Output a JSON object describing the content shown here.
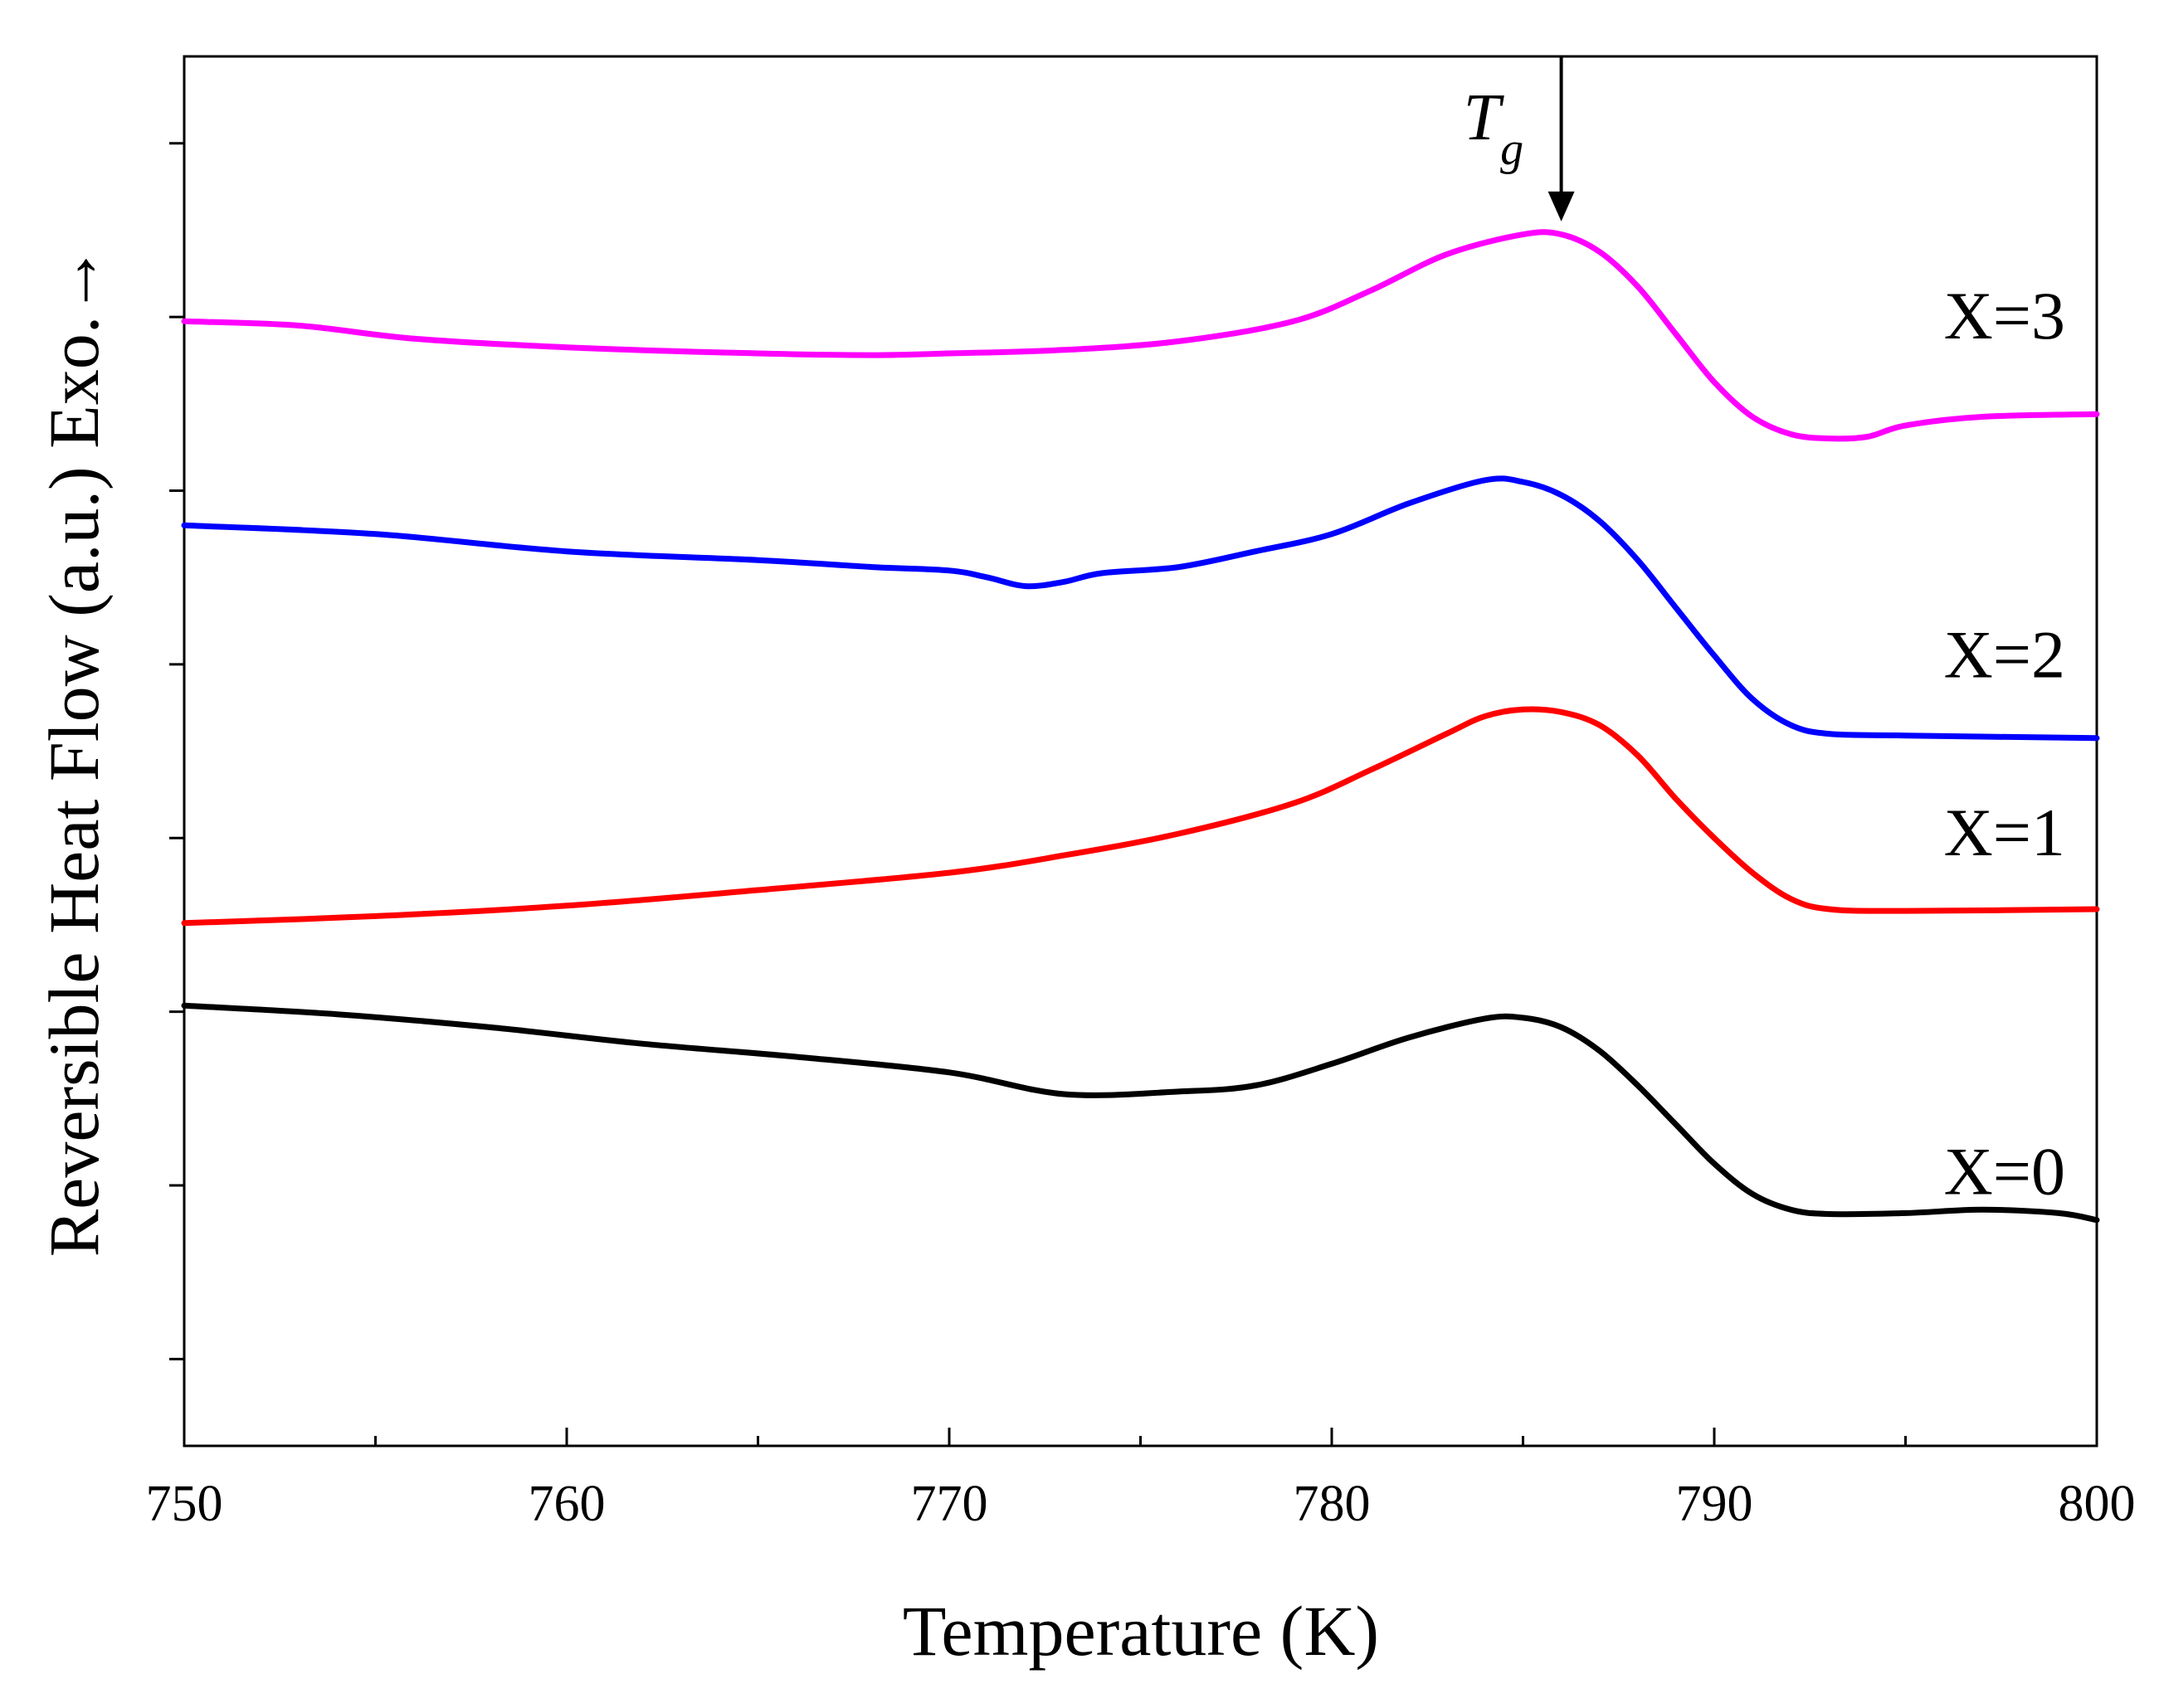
{
  "chart_data": {
    "type": "line",
    "title": "",
    "xlabel": "Temperature (K)",
    "ylabel": "Reversible Heat Flow (a.u.) Exo.→",
    "xlim": [
      750,
      800
    ],
    "ylim": [
      -1,
      15
    ],
    "x_ticks": [
      750,
      760,
      770,
      780,
      790,
      800
    ],
    "x_tick_labels": [
      "750",
      "760",
      "770",
      "780",
      "790",
      "800"
    ],
    "x_minor_ticks": [
      755,
      765,
      775,
      785,
      795
    ],
    "y_ticks": [
      0,
      2,
      4,
      6,
      8,
      10,
      12,
      14
    ],
    "y_tick_labels_visible": false,
    "annotation": {
      "main": "T",
      "sub": "g",
      "x": 786,
      "arrow_from_y": 15.0,
      "arrow_to_y": 13.1
    },
    "series": [
      {
        "name": "X=0",
        "label": "X=0",
        "color": "#000000",
        "label_pos": [
          796,
          1.9
        ],
        "points": [
          [
            750,
            4.07
          ],
          [
            754,
            3.97
          ],
          [
            758,
            3.82
          ],
          [
            762,
            3.63
          ],
          [
            766,
            3.48
          ],
          [
            770,
            3.3
          ],
          [
            773,
            3.05
          ],
          [
            776,
            3.08
          ],
          [
            778,
            3.15
          ],
          [
            780,
            3.4
          ],
          [
            782,
            3.7
          ],
          [
            784,
            3.92
          ],
          [
            785,
            3.93
          ],
          [
            786,
            3.82
          ],
          [
            787,
            3.55
          ],
          [
            788,
            3.15
          ],
          [
            789,
            2.7
          ],
          [
            790,
            2.25
          ],
          [
            791,
            1.9
          ],
          [
            792,
            1.72
          ],
          [
            793,
            1.67
          ],
          [
            795,
            1.68
          ],
          [
            797,
            1.72
          ],
          [
            799,
            1.68
          ],
          [
            800,
            1.6
          ]
        ]
      },
      {
        "name": "X=1",
        "label": "X=1",
        "color": "#ff0000",
        "label_pos": [
          796,
          5.8
        ],
        "points": [
          [
            750,
            5.02
          ],
          [
            755,
            5.1
          ],
          [
            760,
            5.22
          ],
          [
            765,
            5.4
          ],
          [
            770,
            5.6
          ],
          [
            773,
            5.8
          ],
          [
            776,
            6.05
          ],
          [
            779,
            6.4
          ],
          [
            781,
            6.78
          ],
          [
            783,
            7.2
          ],
          [
            784,
            7.4
          ],
          [
            785,
            7.48
          ],
          [
            786,
            7.45
          ],
          [
            787,
            7.3
          ],
          [
            788,
            6.95
          ],
          [
            789,
            6.45
          ],
          [
            790,
            6.0
          ],
          [
            791,
            5.6
          ],
          [
            792,
            5.3
          ],
          [
            793,
            5.18
          ],
          [
            795,
            5.16
          ],
          [
            800,
            5.18
          ]
        ]
      },
      {
        "name": "X=2",
        "label": "X=2",
        "color": "#0000ff",
        "label_pos": [
          796,
          7.85
        ],
        "points": [
          [
            750,
            9.6
          ],
          [
            755,
            9.5
          ],
          [
            760,
            9.3
          ],
          [
            765,
            9.2
          ],
          [
            768,
            9.12
          ],
          [
            770,
            9.08
          ],
          [
            771,
            9.0
          ],
          [
            772,
            8.9
          ],
          [
            773,
            8.95
          ],
          [
            774,
            9.05
          ],
          [
            776,
            9.12
          ],
          [
            778,
            9.3
          ],
          [
            780,
            9.5
          ],
          [
            782,
            9.85
          ],
          [
            784,
            10.12
          ],
          [
            785,
            10.1
          ],
          [
            786,
            9.95
          ],
          [
            787,
            9.65
          ],
          [
            788,
            9.2
          ],
          [
            789,
            8.65
          ],
          [
            790,
            8.1
          ],
          [
            791,
            7.6
          ],
          [
            792,
            7.3
          ],
          [
            793,
            7.2
          ],
          [
            795,
            7.18
          ],
          [
            800,
            7.15
          ]
        ]
      },
      {
        "name": "X=3",
        "label": "X=3",
        "color": "#ff00ff",
        "label_pos": [
          796,
          11.75
        ],
        "points": [
          [
            750,
            11.95
          ],
          [
            753,
            11.9
          ],
          [
            756,
            11.75
          ],
          [
            760,
            11.65
          ],
          [
            765,
            11.58
          ],
          [
            768,
            11.56
          ],
          [
            770,
            11.58
          ],
          [
            773,
            11.62
          ],
          [
            776,
            11.72
          ],
          [
            779,
            11.95
          ],
          [
            781,
            12.3
          ],
          [
            783,
            12.72
          ],
          [
            785,
            12.95
          ],
          [
            786,
            12.95
          ],
          [
            787,
            12.75
          ],
          [
            788,
            12.35
          ],
          [
            789,
            11.8
          ],
          [
            790,
            11.25
          ],
          [
            791,
            10.85
          ],
          [
            792,
            10.65
          ],
          [
            793,
            10.6
          ],
          [
            794,
            10.62
          ],
          [
            795,
            10.75
          ],
          [
            797,
            10.85
          ],
          [
            800,
            10.88
          ]
        ]
      }
    ]
  }
}
